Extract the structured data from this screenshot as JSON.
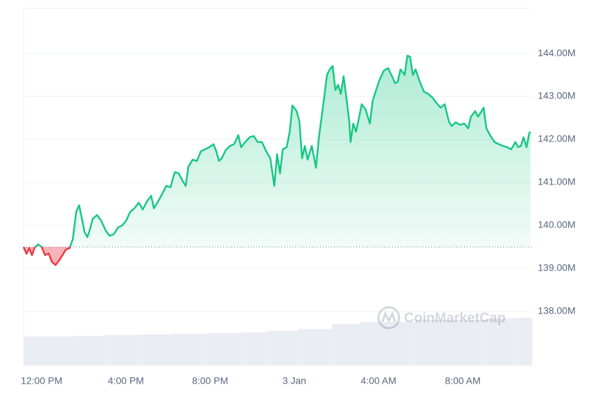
{
  "chart_data": {
    "type": "line",
    "watermark": "CoinMarketCap",
    "xlim": [
      -0.86,
      23.3
    ],
    "ylim": [
      136.74,
      145.05
    ],
    "baseline": 139.5,
    "above_color": "#16c784",
    "below_color": "#ea3943",
    "xticks": [
      {
        "value": 0,
        "label": "12:00 PM"
      },
      {
        "value": 4,
        "label": "4:00 PM"
      },
      {
        "value": 8,
        "label": "8:00 PM"
      },
      {
        "value": 12,
        "label": "3 Jan"
      },
      {
        "value": 16,
        "label": "4:00 AM"
      },
      {
        "value": 20,
        "label": "8:00 AM"
      }
    ],
    "yticks": [
      {
        "value": 138,
        "label": "138.00M"
      },
      {
        "value": 139,
        "label": "139.00M"
      },
      {
        "value": 140,
        "label": "140.00M"
      },
      {
        "value": 141,
        "label": "141.00M"
      },
      {
        "value": 142,
        "label": "142.00M"
      },
      {
        "value": 143,
        "label": "143.00M"
      },
      {
        "value": 144,
        "label": "144.00M"
      }
    ],
    "grid": true,
    "x": [
      -0.86,
      -0.72,
      -0.59,
      -0.46,
      -0.33,
      -0.16,
      0,
      0.16,
      0.33,
      0.49,
      0.66,
      0.82,
      0.99,
      1.15,
      1.32,
      1.48,
      1.64,
      1.78,
      1.91,
      2.04,
      2.17,
      2.3,
      2.43,
      2.63,
      2.83,
      3.03,
      3.22,
      3.42,
      3.62,
      3.82,
      4.01,
      4.21,
      4.41,
      4.61,
      4.8,
      5.0,
      5.2,
      5.33,
      5.53,
      5.72,
      5.92,
      6.12,
      6.32,
      6.51,
      6.71,
      6.84,
      6.97,
      7.17,
      7.37,
      7.57,
      7.76,
      7.96,
      8.16,
      8.29,
      8.42,
      8.55,
      8.75,
      8.95,
      9.14,
      9.34,
      9.47,
      9.67,
      9.87,
      10.07,
      10.26,
      10.46,
      10.66,
      10.86,
      11.05,
      11.18,
      11.32,
      11.45,
      11.64,
      11.78,
      11.91,
      12.11,
      12.24,
      12.37,
      12.5,
      12.63,
      12.83,
      13.03,
      13.16,
      13.29,
      13.42,
      13.55,
      13.68,
      13.82,
      13.95,
      14.08,
      14.21,
      14.34,
      14.47,
      14.61,
      14.67,
      14.8,
      14.93,
      15.07,
      15.2,
      15.39,
      15.59,
      15.72,
      15.86,
      16.05,
      16.25,
      16.45,
      16.64,
      16.78,
      16.91,
      17.04,
      17.24,
      17.37,
      17.5,
      17.63,
      17.76,
      17.96,
      18.16,
      18.36,
      18.55,
      18.75,
      18.95,
      19.14,
      19.34,
      19.47,
      19.67,
      19.87,
      20.07,
      20.26,
      20.39,
      20.59,
      20.72,
      20.86,
      20.99,
      21.12,
      21.32,
      21.51,
      21.71,
      21.91,
      22.11,
      22.3,
      22.5,
      22.63,
      22.76,
      22.89,
      23.03,
      23.16,
      23.22
    ],
    "series": [
      {
        "color": "#16c784",
        "values": [
          139.5,
          139.34,
          139.47,
          139.31,
          139.49,
          139.56,
          139.5,
          139.31,
          139.35,
          139.15,
          139.08,
          139.18,
          139.31,
          139.44,
          139.47,
          139.68,
          140.32,
          140.47,
          140.16,
          139.84,
          139.73,
          139.92,
          140.16,
          140.24,
          140.11,
          139.89,
          139.76,
          139.79,
          139.95,
          140.0,
          140.11,
          140.32,
          140.4,
          140.53,
          140.37,
          140.56,
          140.69,
          140.4,
          140.56,
          140.73,
          140.92,
          140.89,
          141.24,
          141.21,
          141.02,
          140.92,
          141.37,
          141.53,
          141.5,
          141.73,
          141.77,
          141.82,
          141.89,
          141.73,
          141.5,
          141.56,
          141.76,
          141.85,
          141.89,
          142.1,
          141.82,
          141.94,
          142.05,
          142.08,
          141.94,
          141.94,
          141.73,
          141.56,
          140.92,
          141.66,
          141.21,
          141.77,
          141.82,
          142.18,
          142.79,
          142.66,
          142.42,
          141.56,
          141.85,
          141.53,
          141.85,
          141.34,
          142.02,
          142.5,
          142.98,
          143.5,
          143.63,
          143.71,
          143.15,
          143.27,
          143.06,
          143.47,
          142.98,
          142.42,
          141.94,
          142.37,
          142.18,
          142.5,
          142.82,
          142.69,
          142.37,
          142.9,
          143.11,
          143.39,
          143.6,
          143.66,
          143.47,
          143.31,
          143.34,
          143.63,
          143.5,
          143.95,
          143.92,
          143.5,
          143.63,
          143.34,
          143.11,
          143.06,
          142.98,
          142.85,
          142.74,
          142.82,
          142.42,
          142.31,
          142.4,
          142.34,
          142.37,
          142.26,
          142.53,
          142.66,
          142.53,
          142.63,
          142.74,
          142.26,
          142.08,
          141.94,
          141.89,
          141.85,
          141.82,
          141.77,
          141.94,
          141.82,
          141.85,
          142.05,
          141.82,
          142.15,
          142.18
        ]
      }
    ],
    "volume": {
      "color": "#eaedf2",
      "lim": [
        0,
        100
      ],
      "x": [
        -0.86,
        1.64,
        2.96,
        4.6,
        6.25,
        7.89,
        9.53,
        10.68,
        12.16,
        13.8,
        15.12,
        17.75,
        21.04,
        22.36
      ],
      "values": [
        42,
        43,
        44,
        45,
        46,
        47,
        48,
        50,
        53,
        60,
        63,
        66,
        68,
        69
      ]
    }
  }
}
